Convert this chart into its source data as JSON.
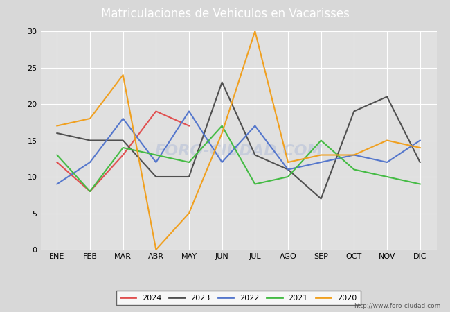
{
  "title": "Matriculaciones de Vehiculos en Vacarisses",
  "months": [
    "ENE",
    "FEB",
    "MAR",
    "ABR",
    "MAY",
    "JUN",
    "JUL",
    "AGO",
    "SEP",
    "OCT",
    "NOV",
    "DIC"
  ],
  "series": {
    "2024": [
      12,
      8,
      13,
      19,
      17,
      null,
      null,
      null,
      null,
      null,
      null,
      null
    ],
    "2023": [
      16,
      15,
      15,
      10,
      10,
      23,
      13,
      11,
      7,
      19,
      21,
      12
    ],
    "2022": [
      9,
      12,
      18,
      12,
      19,
      12,
      17,
      11,
      12,
      13,
      12,
      15
    ],
    "2021": [
      13,
      8,
      14,
      13,
      12,
      17,
      9,
      10,
      15,
      11,
      10,
      9
    ],
    "2020": [
      17,
      18,
      24,
      0,
      5,
      16,
      30,
      12,
      13,
      13,
      15,
      14
    ]
  },
  "colors": {
    "2024": "#e05050",
    "2023": "#505050",
    "2022": "#5577cc",
    "2021": "#44bb44",
    "2020": "#f0a020"
  },
  "ylim": [
    0,
    30
  ],
  "yticks": [
    0,
    5,
    10,
    15,
    20,
    25,
    30
  ],
  "bg_color": "#d8d8d8",
  "plot_bg_color": "#e0e0e0",
  "title_bg_color": "#4472c4",
  "title_text_color": "#ffffff",
  "grid_color": "#ffffff",
  "url_text": "http://www.foro-ciudad.com",
  "watermark_text": "FORO-CIUDAD.COM",
  "watermark_color": "#b0bcd8",
  "watermark_alpha": 0.5,
  "title_fontsize": 12,
  "tick_fontsize": 8,
  "legend_fontsize": 8,
  "linewidth": 1.5
}
